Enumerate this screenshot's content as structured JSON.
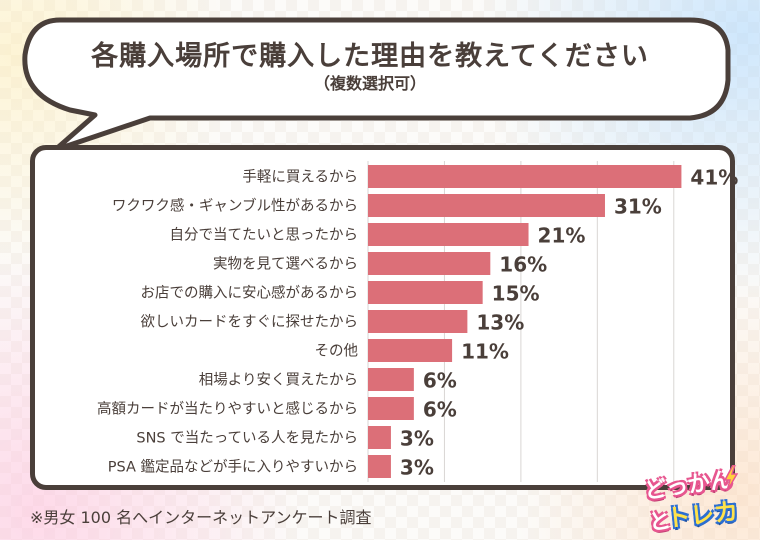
{
  "title": "各購入場所で購入した理由を教えてください",
  "subtitle": "（複数選択可）",
  "footnote": "※男女 100 名へインターネットアンケート調査",
  "logo": {
    "line1": "どっかんと",
    "line2": "トレカ"
  },
  "colors": {
    "bar": "#dc6f78",
    "text": "#4a3f3a",
    "grid": "#d9d6d4",
    "border": "#4a3f3a"
  },
  "chart_data": {
    "type": "bar",
    "orientation": "horizontal",
    "categories": [
      "手軽に買えるから",
      "ワクワク感・ギャンブル性があるから",
      "自分で当てたいと思ったから",
      "実物を見て選べるから",
      "お店での購入に安心感があるから",
      "欲しいカードをすぐに探せたから",
      "その他",
      "相場より安く買えたから",
      "高額カードが当たりやすいと感じるから",
      "SNS で当たっている人を見たから",
      "PSA 鑑定品などが手に入りやすいから"
    ],
    "values": [
      41,
      31,
      21,
      16,
      15,
      13,
      11,
      6,
      6,
      3,
      3
    ],
    "value_labels": [
      "41%",
      "31%",
      "21%",
      "16%",
      "15%",
      "13%",
      "11%",
      "6%",
      "6%",
      "3%",
      "3%"
    ],
    "xlim": [
      0,
      45
    ],
    "grid": true
  }
}
